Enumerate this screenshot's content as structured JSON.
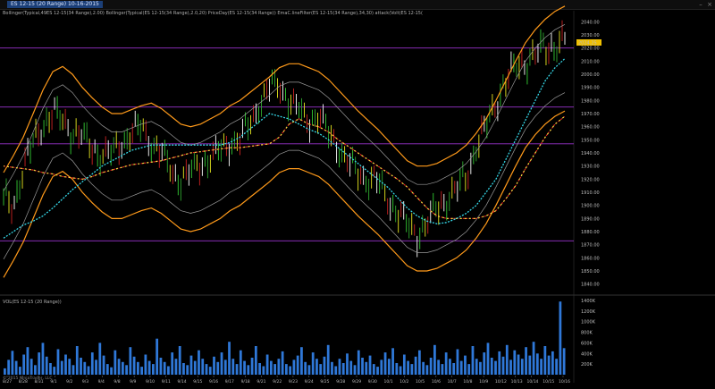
{
  "window": {
    "title": "ES 12-15 (20 Range)   10-16-2015"
  },
  "studies_label": "Bollinger(Typical,49ES 12-15(34 Range),2.00)  Bollinger(Typical(ES 12-15(34 Range),2.0,20)  PriceDay(ES 12-15(34 Range))  EmaC.lineFilter(ES 12-15(34 Range),34,30)  attack(Volt(ES 12-15(20 Range))",
  "volume_label": "VOL(ES 12-15 (20 Range))",
  "copyright": "© 2015 NinjaTrader, LLC",
  "colors": {
    "bands": "#ff9a1a",
    "inner": "#9a9a9a",
    "cyan": "#35d6e6",
    "yellow": "#f0e040",
    "red": "#e02020",
    "hline": "#9933cc",
    "volume": "#2f78d8",
    "highlight": "#ffffff"
  },
  "chart_data": [
    {
      "type": "line",
      "title": "",
      "y_ticks": [
        "2040.00",
        "2030.00",
        "2020.00",
        "2010.00",
        "2000.00",
        "1990.00",
        "1980.00",
        "1970.00",
        "1960.00",
        "1950.00",
        "1940.00",
        "1930.00",
        "1920.00",
        "1910.00",
        "1900.00",
        "1890.00",
        "1880.00",
        "1870.00",
        "1860.00",
        "1850.00",
        "1840.00"
      ],
      "ylim": [
        1835,
        2043
      ],
      "current_price": "2024.25",
      "horizontal_lines": [
        2020,
        1975,
        1947,
        1873
      ],
      "x_ticks": [
        "8/27",
        "8/28",
        "8/31",
        "9/1",
        "9/2",
        "9/3",
        "9/4",
        "9/8",
        "9/9",
        "9/10",
        "9/11",
        "9/14",
        "9/15",
        "9/16",
        "9/17",
        "9/18",
        "9/21",
        "9/22",
        "9/23",
        "9/24",
        "9/25",
        "9/28",
        "9/29",
        "9/30",
        "10/1",
        "10/2",
        "10/5",
        "10/6",
        "10/7",
        "10/8",
        "10/9",
        "10/12",
        "10/13",
        "10/14",
        "10/15",
        "10/16"
      ],
      "series": [
        {
          "values": [
            1905,
            1900,
            1928,
            1948,
            1962,
            1970,
            1965,
            1956,
            1952,
            1944,
            1938,
            1940,
            1948,
            1955,
            1960,
            1948,
            1940,
            1926,
            1920,
            1925,
            1932,
            1936,
            1942,
            1948,
            1950,
            1962,
            1978,
            1990,
            1992,
            1980,
            1972,
            1965,
            1968,
            1955,
            1945,
            1932,
            1925,
            1920,
            1918,
            1905,
            1895,
            1885,
            1878,
            1886,
            1898,
            1905,
            1912,
            1922,
            1945,
            1960,
            1978,
            1995,
            2005,
            2010,
            2015,
            2020,
            2022,
            2026
          ]
        },
        {
          "values": [
            1885,
            1898,
            1912,
            1930,
            1948,
            1962,
            1966,
            1960,
            1950,
            1942,
            1935,
            1930,
            1930,
            1933,
            1936,
            1938,
            1934,
            1928,
            1922,
            1920,
            1922,
            1926,
            1930,
            1936,
            1940,
            1946,
            1952,
            1958,
            1965,
            1968,
            1968,
            1965,
            1962,
            1956,
            1948,
            1940,
            1932,
            1925,
            1918,
            1910,
            1902,
            1894,
            1890,
            1890,
            1892,
            1896,
            1900,
            1906,
            1915,
            1926,
            1940,
            1955,
            1970,
            1984,
            1994,
            2002,
            2008,
            2012
          ]
        },
        {
          "values": [
            1930,
            1929,
            1928,
            1927,
            1925,
            1924,
            1922,
            1921,
            1920,
            1922,
            1925,
            1927,
            1929,
            1931,
            1932,
            1933,
            1934,
            1936,
            1938,
            1940,
            1941,
            1942,
            1943,
            1944,
            1944,
            1945,
            1946,
            1947,
            1952,
            1962,
            1966,
            1962,
            1960,
            1956,
            1950,
            1945,
            1940,
            1935,
            1930,
            1925,
            1920,
            1914,
            1906,
            1898,
            1892,
            1890,
            1890,
            1890,
            1890,
            1892,
            1896,
            1905,
            1915,
            1928,
            1940,
            1952,
            1962,
            1968
          ]
        },
        {
          "values": [
            1875,
            1880,
            1885,
            1888,
            1892,
            1898,
            1905,
            1912,
            1918,
            1924,
            1930,
            1934,
            1938,
            1942,
            1944,
            1946,
            1946,
            1946,
            1946,
            1946,
            1946,
            1946,
            1946,
            1948,
            1952,
            1958,
            1964,
            1970,
            1968,
            1966,
            1962,
            1958,
            1955,
            1950,
            1944,
            1938,
            1932,
            1926,
            1920,
            1914,
            1906,
            1898,
            1892,
            1888,
            1886,
            1887,
            1890,
            1894,
            1900,
            1910,
            1920,
            1935,
            1950,
            1965,
            1980,
            1995,
            2005,
            2012
          ]
        }
      ]
    },
    {
      "type": "bar",
      "title": "",
      "y_ticks": [
        "1400K",
        "1200K",
        "1000K",
        "800K",
        "600K",
        "400K",
        "200K"
      ],
      "ylim": [
        0,
        1450000
      ],
      "values": [
        120000,
        280000,
        450000,
        260000,
        150000,
        380000,
        520000,
        300000,
        180000,
        420000,
        600000,
        340000,
        220000,
        150000,
        480000,
        260000,
        380000,
        300000,
        180000,
        540000,
        320000,
        240000,
        160000,
        420000,
        280000,
        600000,
        360000,
        200000,
        140000,
        460000,
        300000,
        240000,
        180000,
        520000,
        340000,
        240000,
        150000,
        380000,
        260000,
        200000,
        680000,
        320000,
        240000,
        160000,
        420000,
        300000,
        540000,
        220000,
        180000,
        360000,
        260000,
        460000,
        300000,
        200000,
        150000,
        340000,
        240000,
        420000,
        280000,
        620000,
        300000,
        200000,
        460000,
        260000,
        180000,
        320000,
        540000,
        220000,
        160000,
        380000,
        260000,
        200000,
        300000,
        440000,
        200000,
        160000,
        280000,
        360000,
        520000,
        240000,
        180000,
        420000,
        300000,
        200000,
        340000,
        560000,
        240000,
        160000,
        300000,
        220000,
        400000,
        260000,
        180000,
        460000,
        320000,
        240000,
        360000,
        200000,
        150000,
        280000,
        420000,
        300000,
        500000,
        220000,
        160000,
        380000,
        260000,
        200000,
        340000,
        460000,
        240000,
        180000,
        320000,
        560000,
        280000,
        200000,
        420000,
        300000,
        220000,
        480000,
        260000,
        360000,
        200000,
        540000,
        300000,
        240000,
        420000,
        600000,
        320000,
        260000,
        440000,
        340000,
        560000,
        280000,
        460000,
        380000,
        300000,
        520000,
        360000,
        620000,
        400000,
        300000,
        540000,
        360000,
        440000,
        300000,
        1380000,
        500000
      ]
    }
  ]
}
